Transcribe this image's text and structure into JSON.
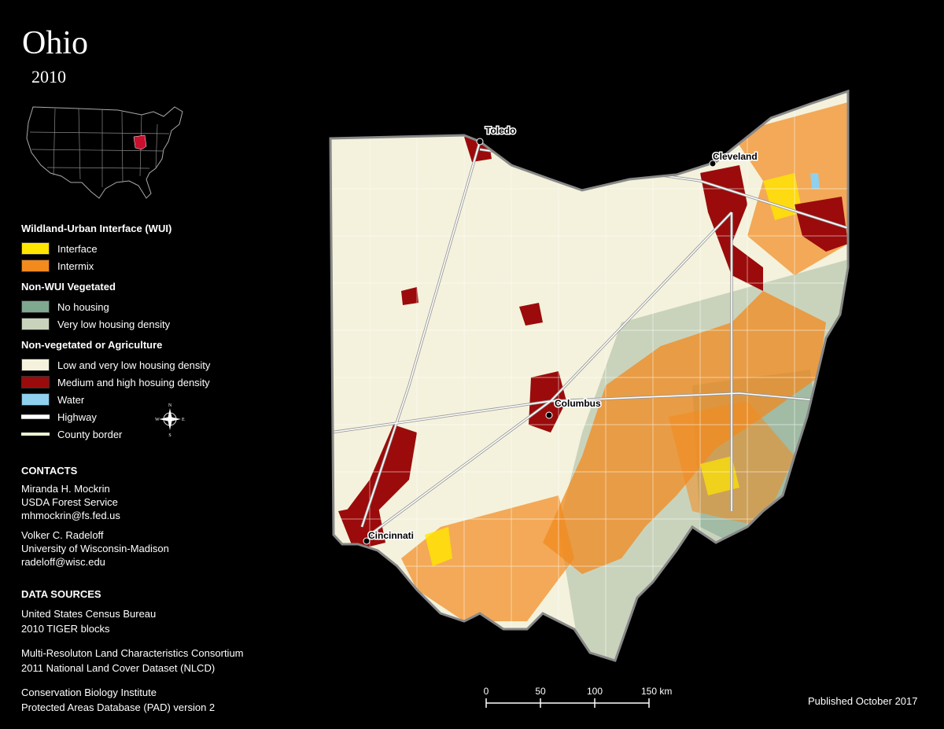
{
  "title": "Ohio",
  "year": "2010",
  "legend": {
    "groups": [
      {
        "heading": "Wildland-Urban Interface (WUI)",
        "items": [
          {
            "label": "Interface",
            "color": "#ffe600"
          },
          {
            "label": "Intermix",
            "color": "#f28a1e"
          }
        ]
      },
      {
        "heading": "Non-WUI Vegetated",
        "items": [
          {
            "label": "No housing",
            "color": "#7fa890"
          },
          {
            "label": "Very low housing density",
            "color": "#c9d3bc"
          }
        ]
      },
      {
        "heading": "Non-vegetated or Agriculture",
        "items": [
          {
            "label": "Low and very low housing density",
            "color": "#f4f2dc"
          },
          {
            "label": "Medium and high hosuing density",
            "color": "#9b0b0b"
          },
          {
            "label": "Water",
            "color": "#8fd0ee"
          }
        ]
      }
    ],
    "lines": [
      {
        "label": "Highway"
      },
      {
        "label": "County border"
      }
    ]
  },
  "compass": {
    "n": "N",
    "s": "S",
    "e": "E",
    "w": "W"
  },
  "contacts": {
    "heading": "CONTACTS",
    "people": [
      {
        "name": "Miranda H. Mockrin",
        "org": "USDA Forest Service",
        "email": "mhmockrin@fs.fed.us"
      },
      {
        "name": "Volker C. Radeloff",
        "org": "University of Wisconsin-Madison",
        "email": "radeloff@wisc.edu"
      }
    ]
  },
  "data_sources": {
    "heading": "DATA SOURCES",
    "entries": [
      {
        "line1": "United States Census Bureau",
        "line2": "2010 TIGER blocks"
      },
      {
        "line1": "Multi-Resoluton Land Characteristics Consortium",
        "line2": "2011 National Land Cover Dataset (NLCD)"
      },
      {
        "line1": "Conservation Biology Institute",
        "line2": "Protected Areas Database (PAD) version 2"
      }
    ]
  },
  "cities": [
    "Toledo",
    "Cleveland",
    "Columbus",
    "Cincinnati"
  ],
  "scale": {
    "ticks": [
      "0",
      "50",
      "100"
    ],
    "last": "150 km"
  },
  "published": "Published October 2017"
}
